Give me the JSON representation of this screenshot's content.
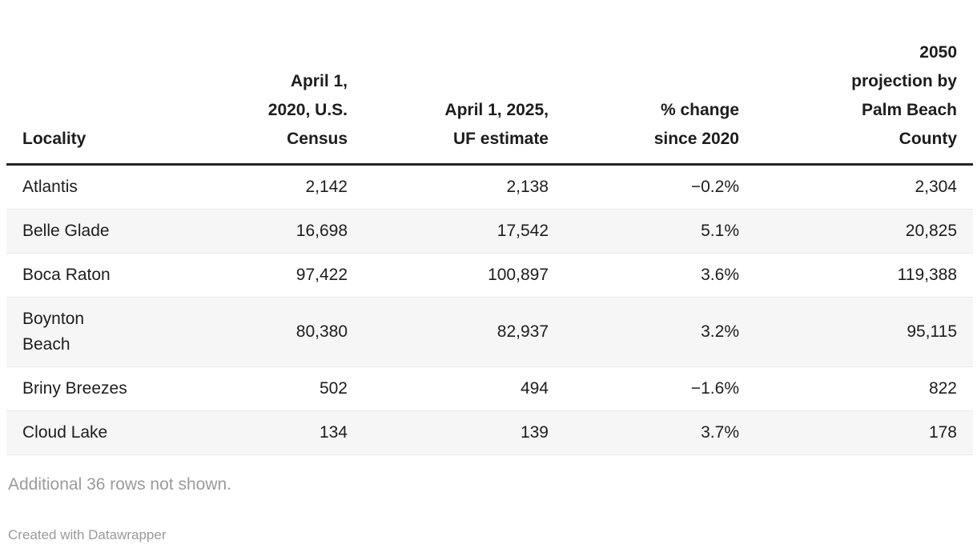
{
  "chart_data": {
    "type": "table",
    "title": "",
    "columns": [
      {
        "key": "locality",
        "label": "Locality",
        "align": "left"
      },
      {
        "key": "census_2020",
        "label": "April 1,\n2020, U.S.\nCensus",
        "align": "right"
      },
      {
        "key": "uf_estimate_2025",
        "label": "April 1, 2025,\nUF estimate",
        "align": "right"
      },
      {
        "key": "pct_change",
        "label": "% change\nsince 2020",
        "align": "right"
      },
      {
        "key": "projection_2050",
        "label": "2050\nprojection by\nPalm Beach\nCounty",
        "align": "right"
      }
    ],
    "rows": [
      [
        "Atlantis",
        "2,142",
        "2,138",
        "−0.2%",
        "2,304"
      ],
      [
        "Belle Glade",
        "16,698",
        "17,542",
        "5.1%",
        "20,825"
      ],
      [
        "Boca Raton",
        "97,422",
        "100,897",
        "3.6%",
        "119,388"
      ],
      [
        "Boynton\nBeach",
        "80,380",
        "82,937",
        "3.2%",
        "95,115"
      ],
      [
        "Briny Breezes",
        "502",
        "494",
        "−1.6%",
        "822"
      ],
      [
        "Cloud Lake",
        "134",
        "139",
        "3.7%",
        "178"
      ]
    ],
    "layout_hints": {
      "striped_rows": "even",
      "header_rule": true,
      "numeric_columns_right_aligned": true
    }
  },
  "footer": {
    "note": "Additional 36 rows not shown.",
    "attribution": "Created with Datawrapper"
  },
  "colors": {
    "background": "#ffffff",
    "text": "#1d1d1d",
    "header_rule": "#252525",
    "row_divider": "#e9e9e9",
    "stripe": "#f6f6f6",
    "muted_text": "#9b9b9b"
  }
}
